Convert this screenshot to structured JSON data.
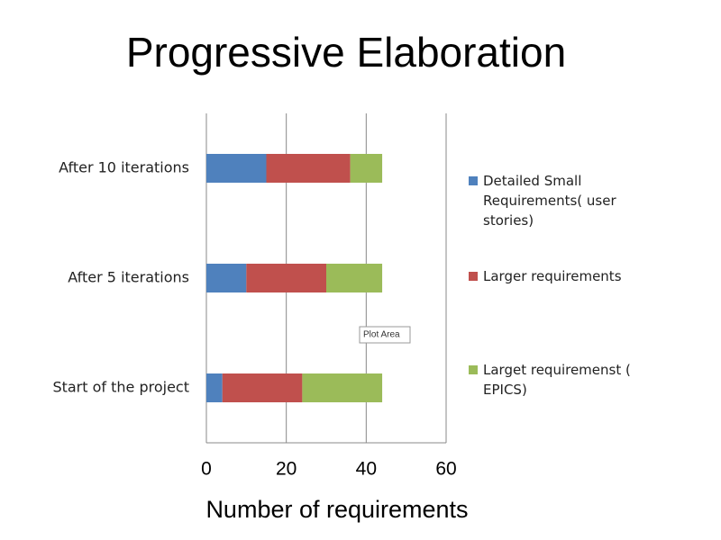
{
  "chart_data": {
    "type": "stacked-barh",
    "title": "Progressive Elaboration",
    "x_label": "Number of requirements",
    "categories": [
      "Start of the project",
      "After 5 iterations",
      "After 10 iterations"
    ],
    "series": [
      {
        "name": "Detailed Small Requirements( user stories)",
        "color": "#4f81bd",
        "values": [
          4,
          10,
          15
        ]
      },
      {
        "name": "Larger requirements",
        "color": "#c0504d",
        "values": [
          20,
          20,
          21
        ]
      },
      {
        "name": "Larget requiremenst ( EPICS)",
        "color": "#9bbb59",
        "values": [
          20,
          14,
          8
        ]
      }
    ],
    "xlim": [
      0,
      60
    ],
    "xticks": [
      0,
      20,
      40,
      60
    ],
    "grid": true,
    "legend": "right",
    "annotation": "Plot Area"
  }
}
